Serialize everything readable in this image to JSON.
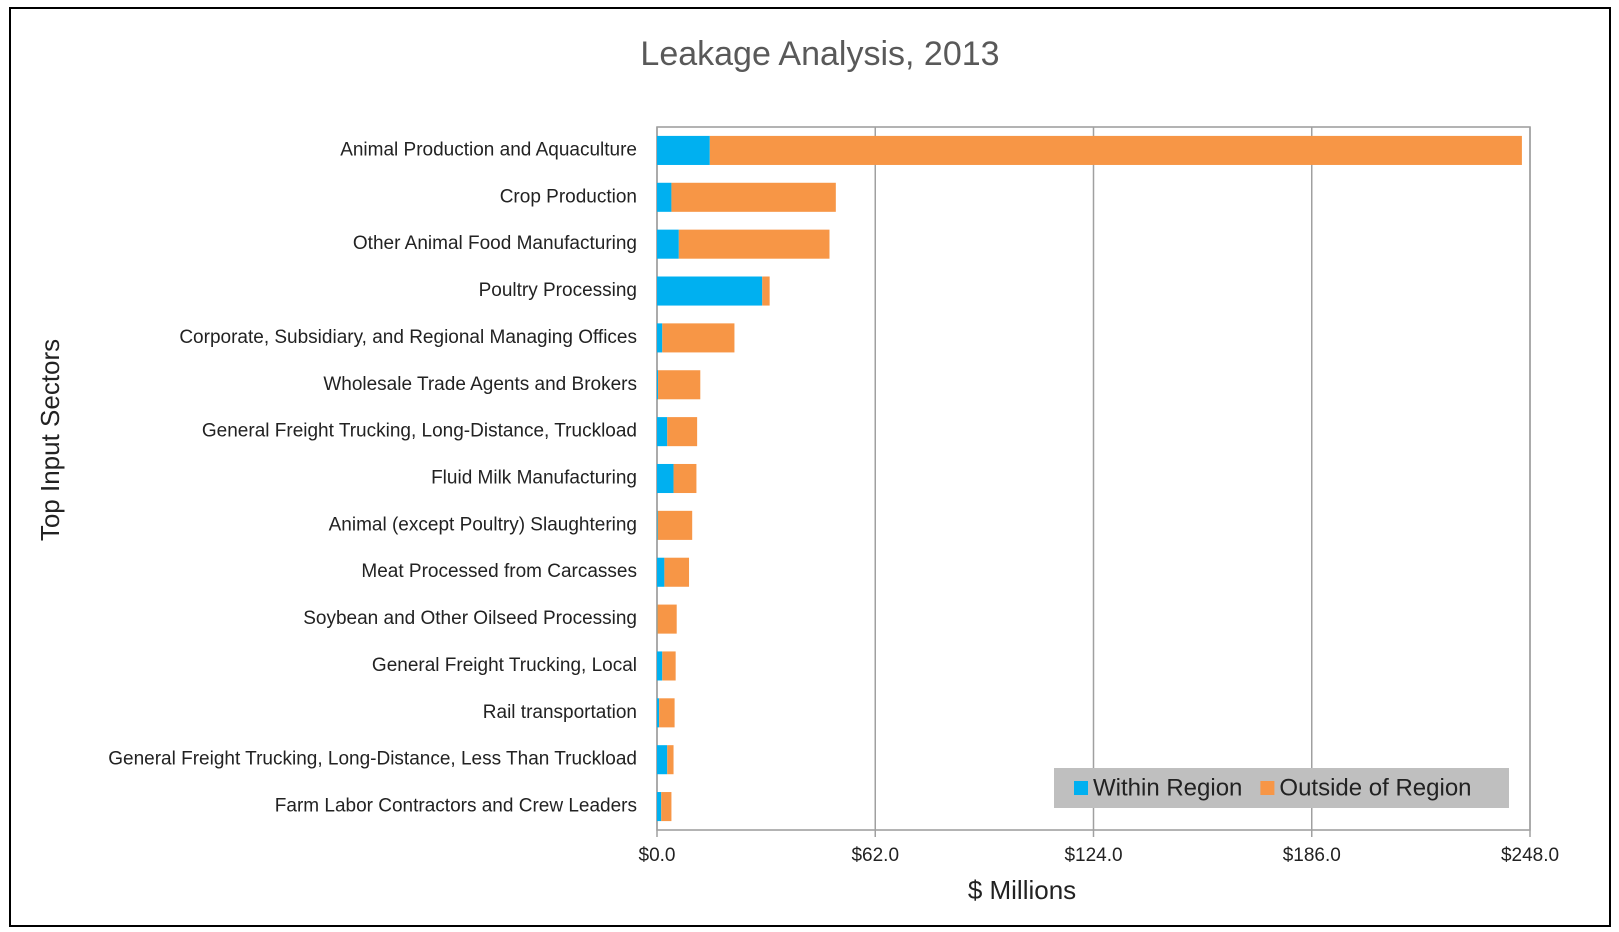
{
  "chart_data": {
    "type": "stacked_bar_horizontal",
    "title": "Leakage Analysis, 2013",
    "x_label": "$ Millions",
    "y_label": "Top Input Sectors",
    "categories": [
      "Animal Production and Aquaculture",
      "Crop Production",
      "Other Animal Food Manufacturing",
      "Poultry Processing",
      "Corporate, Subsidiary, and Regional Managing Offices",
      "Wholesale Trade Agents and Brokers",
      "General Freight Trucking, Long-Distance, Truckload",
      "Fluid Milk Manufacturing",
      "Animal (except Poultry) Slaughtering",
      "Meat Processed from Carcasses",
      "Soybean and Other Oilseed Processing",
      "General Freight Trucking, Local",
      "Rail transportation",
      "General Freight Trucking, Long-Distance, Less Than Truckload",
      "Farm Labor Contractors and Crew Leaders"
    ],
    "series": [
      {
        "name": "Within Region",
        "color": "#00b0f0",
        "values": [
          15.0,
          4.1,
          6.2,
          29.9,
          1.5,
          0.3,
          2.9,
          4.7,
          0.2,
          2.1,
          0.1,
          1.5,
          0.6,
          2.9,
          1.2
        ]
      },
      {
        "name": "Outside of Region",
        "color": "#f79646",
        "values": [
          230.7,
          46.7,
          42.8,
          2.1,
          20.5,
          12.0,
          8.5,
          6.5,
          9.8,
          7.0,
          5.5,
          3.8,
          4.4,
          1.8,
          2.9
        ]
      }
    ],
    "xlim": [
      0,
      248
    ],
    "xticks": [
      {
        "value": 0,
        "label": "$0.0"
      },
      {
        "value": 62,
        "label": "$62.0"
      },
      {
        "value": 124,
        "label": "$124.0"
      },
      {
        "value": 186,
        "label": "$186.0"
      },
      {
        "value": 248,
        "label": "$248.0"
      }
    ],
    "grid": true,
    "legend": "lower right"
  }
}
